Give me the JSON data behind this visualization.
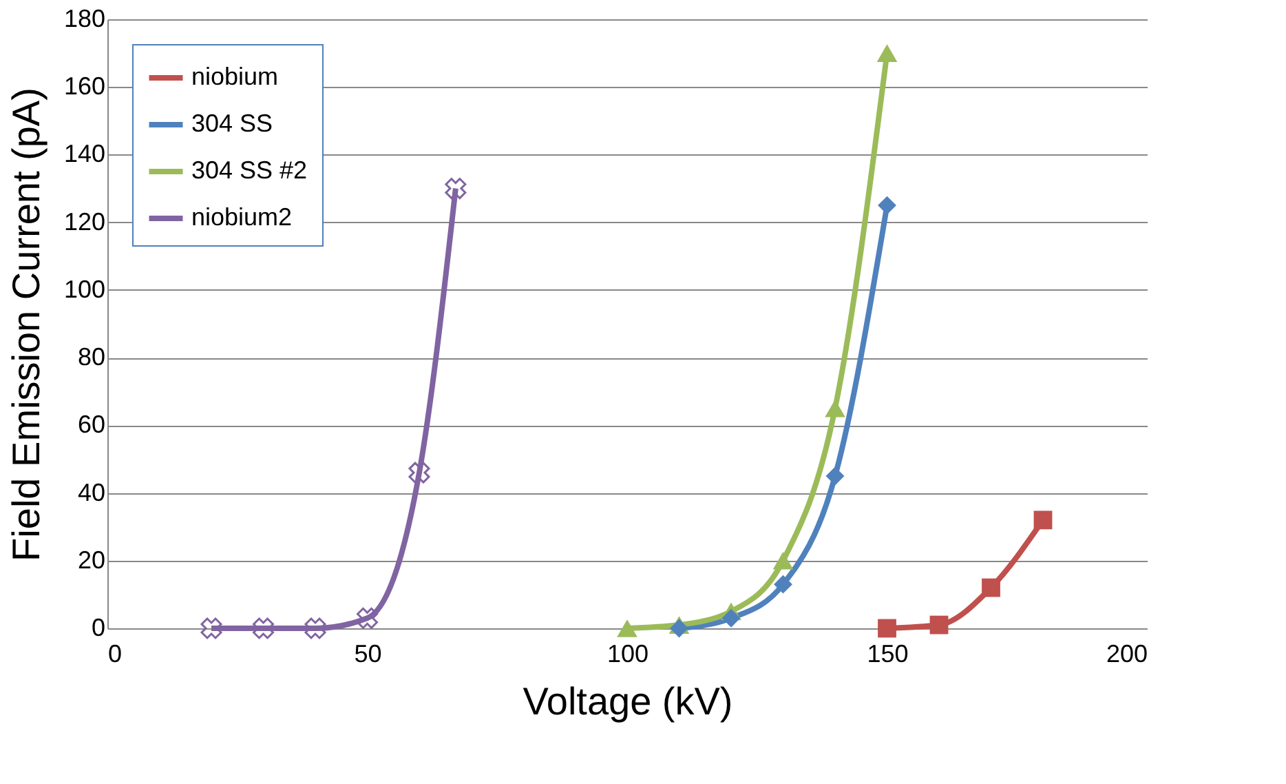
{
  "chart_data": {
    "type": "line",
    "xlabel": "Voltage (kV)",
    "ylabel": "Field Emission Current (pA)",
    "xlim": [
      0,
      200
    ],
    "xticks": [
      0,
      50,
      100,
      150,
      200
    ],
    "ylim": [
      0,
      180
    ],
    "yticks": [
      0,
      20,
      40,
      60,
      80,
      100,
      120,
      140,
      160,
      180
    ],
    "grid": "y",
    "legend": "top left",
    "series": [
      {
        "name": "niobium",
        "color": "#c0504d",
        "marker": "square",
        "x": [
          150,
          160,
          170,
          180
        ],
        "values": [
          0,
          1,
          12,
          32
        ]
      },
      {
        "name": "304 SS",
        "color": "#4f81bd",
        "marker": "diamond",
        "x": [
          110,
          120,
          130,
          140,
          150
        ],
        "values": [
          0,
          3,
          13,
          45,
          125
        ]
      },
      {
        "name": "304 SS #2",
        "color": "#9bbb59",
        "marker": "triangle",
        "x": [
          100,
          110,
          120,
          130,
          140,
          150
        ],
        "values": [
          0,
          1,
          5,
          20,
          65,
          170
        ]
      },
      {
        "name": "niobium2",
        "color": "#8064a2",
        "marker": "cross",
        "x": [
          20,
          30,
          40,
          50,
          60,
          67
        ],
        "values": [
          0,
          0,
          0,
          3,
          46,
          130
        ]
      }
    ]
  }
}
